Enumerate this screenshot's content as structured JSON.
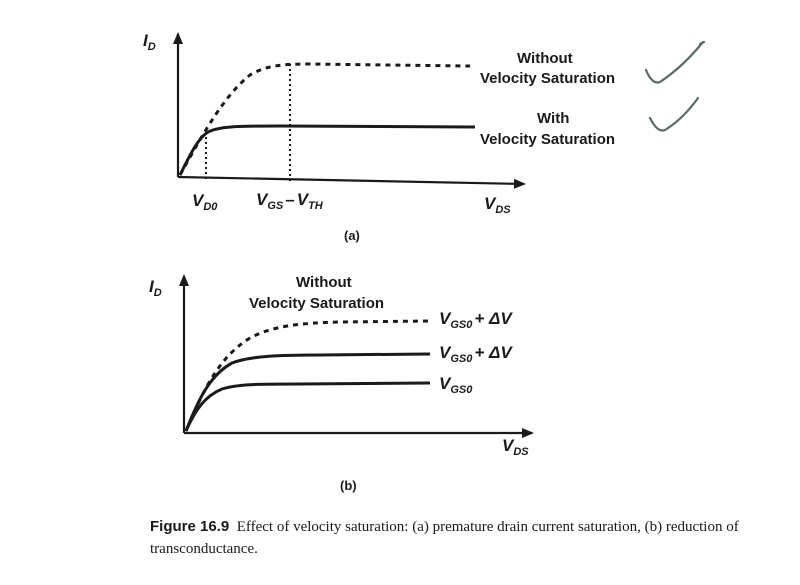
{
  "panel_a": {
    "y_axis": "I",
    "y_axis_sub": "D",
    "x_axis": "V",
    "x_axis_sub": "DS",
    "tick_vd0": "V",
    "tick_vd0_sub": "D0",
    "tick_vgs_a": "V",
    "tick_vgs_a_sub": "GS",
    "tick_vgs_dash": "–",
    "tick_vgs_b": "V",
    "tick_vgs_b_sub": "TH",
    "curve_without_line1": "Without",
    "curve_without_line2": "Velocity Saturation",
    "curve_with_line1": "With",
    "curve_with_line2": "Velocity Saturation",
    "panel_label": "(a)"
  },
  "panel_b": {
    "y_axis": "I",
    "y_axis_sub": "D",
    "x_axis": "V",
    "x_axis_sub": "DS",
    "without_line1": "Without",
    "without_line2": "Velocity Saturation",
    "curve_top_v": "V",
    "curve_top_sub": "GS0",
    "curve_top_plus": "+ ΔV",
    "curve_mid_v": "V",
    "curve_mid_sub": "GS0",
    "curve_mid_plus": "+ ΔV",
    "curve_low_v": "V",
    "curve_low_sub": "GS0",
    "panel_label": "(b)"
  },
  "caption": {
    "figure_number": "Figure 16.9",
    "text": "Effect of velocity saturation: (a) premature drain current saturation, (b) reduction of transconductance."
  },
  "colors": {
    "ink": "#1a1a1a",
    "checkmark": "#5a6b62"
  }
}
